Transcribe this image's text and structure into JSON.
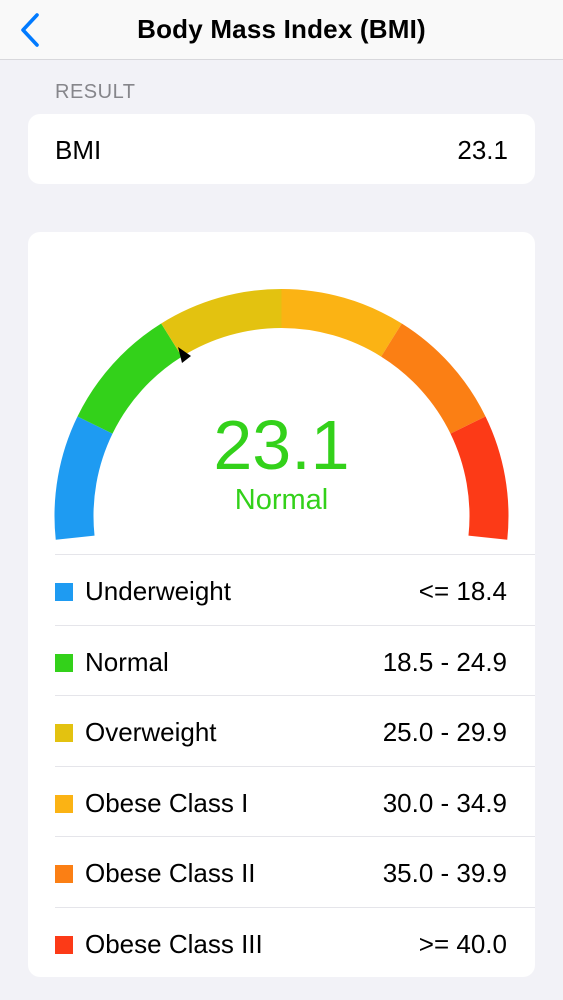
{
  "nav": {
    "title": "Body Mass Index (BMI)",
    "back_icon": "chevron-left-icon",
    "accent": "#007aff"
  },
  "result": {
    "section_label": "RESULT",
    "label": "BMI",
    "value": "23.1"
  },
  "gauge": {
    "value": "23.1",
    "category": "Normal",
    "value_color": "#33d11a",
    "pointer_icon": "triangle-pointer-icon",
    "segments": [
      {
        "name": "Underweight",
        "color": "#1e9bf2"
      },
      {
        "name": "Normal",
        "color": "#33d11a"
      },
      {
        "name": "Overweight",
        "color": "#e3c210"
      },
      {
        "name": "Obese Class I",
        "color": "#fbb314"
      },
      {
        "name": "Obese Class II",
        "color": "#fb7f14"
      },
      {
        "name": "Obese Class III",
        "color": "#fc3a17"
      }
    ]
  },
  "legend": [
    {
      "name": "Underweight",
      "range": "<= 18.4",
      "color": "#1e9bf2"
    },
    {
      "name": "Normal",
      "range": "18.5 - 24.9",
      "color": "#33d11a"
    },
    {
      "name": "Overweight",
      "range": "25.0 - 29.9",
      "color": "#e3c210"
    },
    {
      "name": "Obese Class I",
      "range": "30.0 - 34.9",
      "color": "#fbb314"
    },
    {
      "name": "Obese Class II",
      "range": "35.0 - 39.9",
      "color": "#fb7f14"
    },
    {
      "name": "Obese Class III",
      "range": ">= 40.0",
      "color": "#fc3a17"
    }
  ]
}
